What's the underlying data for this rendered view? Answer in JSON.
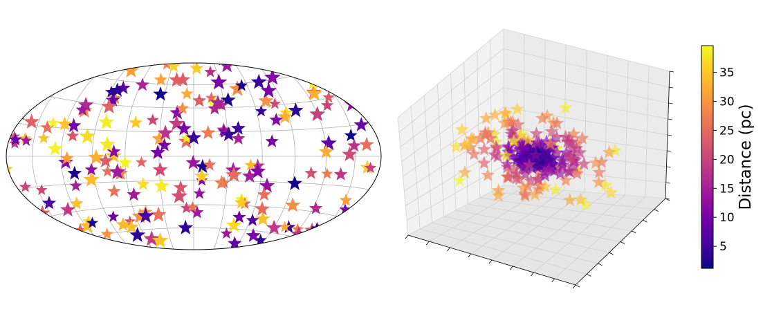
{
  "chart_data": [
    {
      "type": "scatter",
      "projection": "aitoff",
      "title": "",
      "marker": "star",
      "color_by": "distance_pc",
      "colormap": "plasma",
      "grid": true,
      "n_points": 260
    },
    {
      "type": "scatter",
      "projection": "3d",
      "title": "",
      "marker": "star",
      "color_by": "distance_pc",
      "colormap": "plasma",
      "tick_labels_shown": false,
      "n_points": 260
    }
  ],
  "colorbar": {
    "label": "Distance (pc)",
    "ticks": [
      5,
      10,
      15,
      20,
      25,
      30,
      35
    ],
    "vmin": 1.2,
    "vmax": 39.6,
    "stops": [
      "#0d0887",
      "#46039f",
      "#7201a8",
      "#9c179e",
      "#bd3786",
      "#d8576b",
      "#ed7953",
      "#fb9f3a",
      "#fdca26",
      "#f0f921"
    ]
  }
}
